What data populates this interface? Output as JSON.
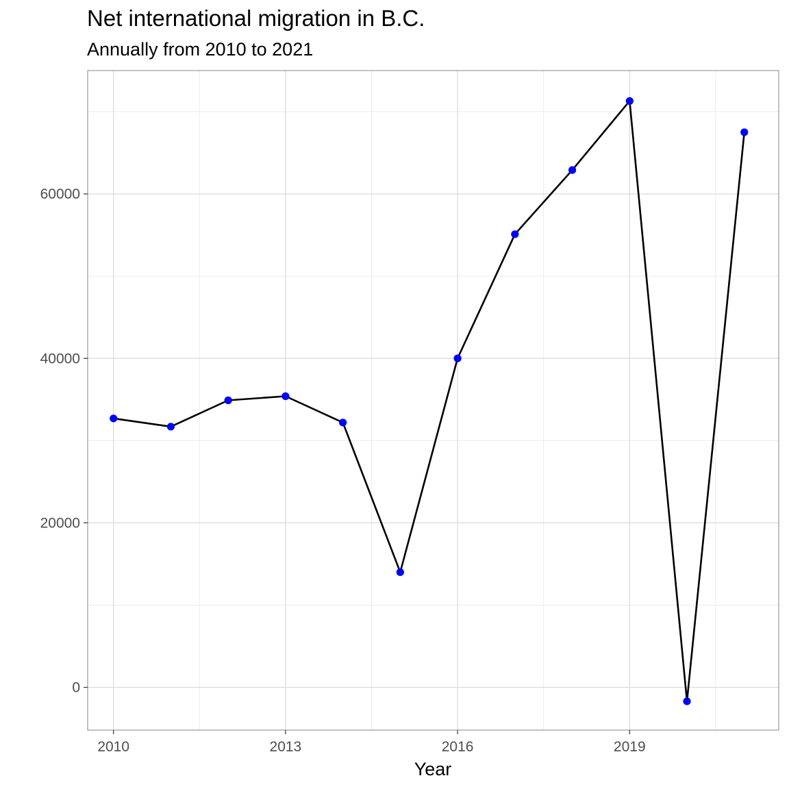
{
  "chart_data": {
    "type": "line",
    "title": "Net international migration in B.C.",
    "subtitle": "Annually from 2010 to 2021",
    "xlabel": "Year",
    "ylabel": "",
    "x": [
      2010,
      2011,
      2012,
      2013,
      2014,
      2015,
      2016,
      2017,
      2018,
      2019,
      2020,
      2021
    ],
    "series": [
      {
        "values": [
          32700,
          31700,
          34900,
          35400,
          32200,
          14000,
          40000,
          55100,
          62900,
          71300,
          -1700,
          67500
        ]
      }
    ],
    "xlim": [
      2009.55,
      2021.6
    ],
    "ylim": [
      -5200,
      75000
    ],
    "x_ticks": [
      2010,
      2013,
      2016,
      2019
    ],
    "x_tick_labels": [
      "2010",
      "2013",
      "2016",
      "2019"
    ],
    "x_minor_ticks": [
      2011.5,
      2014.5,
      2017.5,
      2020.5
    ],
    "y_ticks": [
      0,
      20000,
      40000,
      60000
    ],
    "y_tick_labels": [
      "0",
      "20000",
      "40000",
      "60000"
    ],
    "y_minor_ticks": [
      10000,
      30000,
      50000,
      70000
    ],
    "grid": true,
    "legend": "none",
    "line_color": "#000000",
    "point_color": "#0000ff"
  }
}
